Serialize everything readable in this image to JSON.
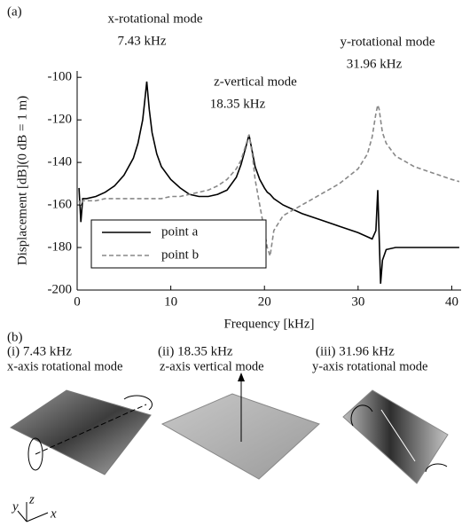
{
  "chart_data": {
    "type": "line",
    "panel_label": "(a)",
    "x_label": "Frequency [kHz]",
    "y_label": "Displacement [dB](0 dB = 1 m)",
    "annotations": [
      {
        "mode": "x-rotational mode",
        "frequency": "7.43 kHz"
      },
      {
        "mode": "z-vertical mode",
        "frequency": "18.35 kHz"
      },
      {
        "mode": "y-rotational mode",
        "frequency": "31.96 kHz"
      }
    ],
    "x": [
      0.2,
      0.4,
      0.6,
      1,
      2,
      3,
      4,
      5,
      6,
      6.5,
      7,
      7.2,
      7.43,
      7.7,
      8,
      8.5,
      9,
      10,
      11,
      12,
      13,
      14,
      15,
      16,
      17,
      17.5,
      18,
      18.35,
      18.7,
      19,
      19.5,
      20,
      20.3,
      20.6,
      21,
      22,
      24,
      26,
      28,
      30,
      31,
      31.5,
      31.9,
      32.1,
      32.25,
      32.4,
      32.6,
      33,
      34,
      36,
      38,
      40,
      40.8
    ],
    "series": [
      {
        "name": "point a",
        "color": "#000000",
        "dash": false,
        "values": [
          -152,
          -168,
          -157,
          -157,
          -156,
          -154,
          -151,
          -146,
          -138,
          -131,
          -120,
          -112,
          -102,
          -115,
          -126,
          -136,
          -142,
          -148,
          -152,
          -155,
          -156,
          -156,
          -155,
          -153,
          -147,
          -141,
          -133,
          -127,
          -135,
          -142,
          -148,
          -152,
          -154,
          -155,
          -157,
          -160,
          -164,
          -167,
          -170,
          -173,
          -175,
          -176,
          -172,
          -153,
          -175,
          -197,
          -186,
          -181,
          -180,
          -180,
          -180,
          -180,
          -180
        ]
      },
      {
        "name": "point b",
        "color": "#888888",
        "dash": true,
        "values": [
          -158,
          -160,
          -158,
          -158,
          -158,
          -157,
          -157,
          -157,
          -157,
          -157,
          -157,
          -157,
          -157,
          -157,
          -157,
          -157,
          -157,
          -156,
          -156,
          -155,
          -154,
          -153,
          -151,
          -148,
          -143,
          -139,
          -132,
          -127,
          -136,
          -148,
          -160,
          -172,
          -180,
          -184,
          -172,
          -165,
          -160,
          -155,
          -150,
          -143,
          -136,
          -128,
          -117,
          -113,
          -115,
          -120,
          -126,
          -131,
          -137,
          -142,
          -145,
          -148,
          -149
        ]
      }
    ],
    "xlim": [
      0,
      41
    ],
    "ylim": [
      -200,
      -97
    ],
    "xticks": [
      0,
      10,
      20,
      30,
      40
    ],
    "yticks": [
      -200,
      -180,
      -160,
      -140,
      -120,
      -100
    ],
    "legend": "lower-left"
  },
  "panel_b": {
    "label": "(b)",
    "modes": [
      {
        "label": "(i) 7.43 kHz",
        "description": "x-axis rotational mode"
      },
      {
        "label": "(ii) 18.35 kHz",
        "description": "z-axis vertical mode"
      },
      {
        "label": "(iii) 31.96 kHz",
        "description": "y-axis rotational mode"
      }
    ],
    "axes": [
      "y",
      "z",
      "x"
    ]
  }
}
